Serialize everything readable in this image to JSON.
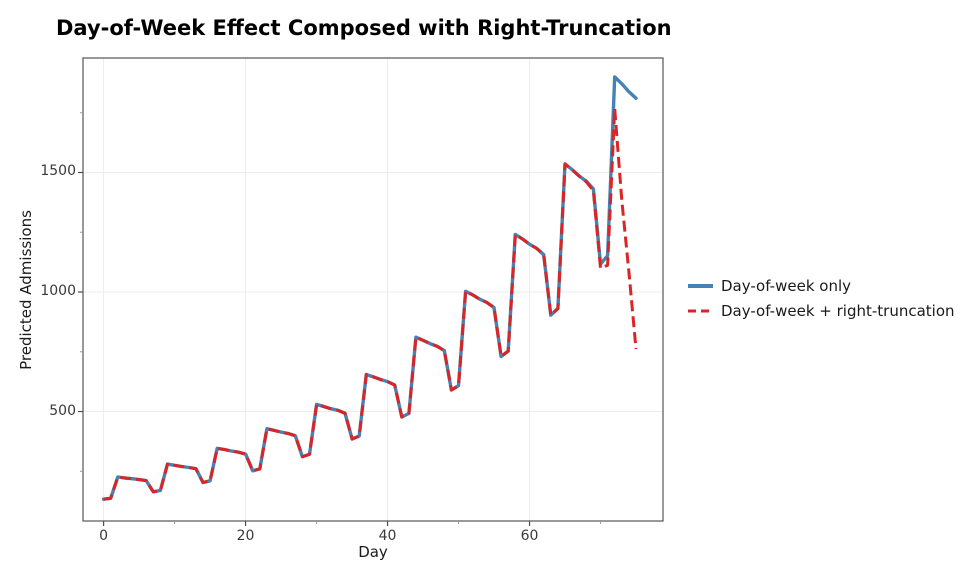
{
  "page": {
    "title": "Day-of-Week Effect Composed with Right-Truncation"
  },
  "chart_data": {
    "type": "line",
    "title": "Day-of-Week Effect Composed with Right-Truncation",
    "xlabel": "Day",
    "ylabel": "Predicted Admissions",
    "xlim": [
      -2.9,
      78.8
    ],
    "ylim": [
      42,
      1979
    ],
    "x_major_ticks": [
      0,
      20,
      40,
      60
    ],
    "x_major_tick_labels": [
      "0",
      "20",
      "40",
      "60"
    ],
    "x_minor_ticks": [
      10,
      30,
      50,
      70
    ],
    "y_major_ticks": [
      500,
      1000,
      1500
    ],
    "y_major_tick_labels": [
      "500",
      "1000",
      "1500"
    ],
    "y_minor_ticks": [
      250,
      750,
      1250,
      1750
    ],
    "grid": "major-both-very-light",
    "legend_position": "right-outside",
    "colors": {
      "blue_series": "#4682b4",
      "red_series": "#d92525",
      "gridline": "#ececec",
      "spine": "#555555",
      "tick": "#4d4d4d",
      "minor_tick": "#999999"
    },
    "days": [
      0,
      1,
      2,
      3,
      4,
      5,
      6,
      7,
      8,
      9,
      10,
      11,
      12,
      13,
      14,
      15,
      16,
      17,
      18,
      19,
      20,
      21,
      22,
      23,
      24,
      25,
      26,
      27,
      28,
      29,
      30,
      31,
      32,
      33,
      34,
      35,
      36,
      37,
      38,
      39,
      40,
      41,
      42,
      43,
      44,
      45,
      46,
      47,
      48,
      49,
      50,
      51,
      52,
      53,
      54,
      55,
      56,
      57,
      58,
      59,
      60,
      61,
      62,
      63,
      64,
      65,
      66,
      67,
      68,
      69,
      70,
      71,
      72,
      73,
      74,
      75
    ],
    "series": [
      {
        "name": "Day-of-week only",
        "style": "solid",
        "color": "#4682b4",
        "values": [
          133,
          137,
          226,
          222,
          219,
          215,
          211,
          164,
          170,
          280,
          275,
          270,
          266,
          261,
          203,
          210,
          346,
          341,
          335,
          330,
          322,
          252,
          260,
          428,
          421,
          414,
          408,
          399,
          311,
          321,
          530,
          521,
          512,
          505,
          493,
          385,
          397,
          655,
          645,
          634,
          625,
          611,
          477,
          492,
          811,
          798,
          784,
          773,
          755,
          590,
          608,
          1003,
          988,
          970,
          956,
          935,
          730,
          753,
          1241,
          1222,
          1200,
          1183,
          1156,
          903,
          931,
          1536,
          1512,
          1485,
          1464,
          1431,
          1117,
          1152,
          1900,
          1871,
          1838,
          1811
        ]
      },
      {
        "name": "Day-of-week + right-truncation",
        "style": "dashed",
        "color": "#d92525",
        "values": [
          133,
          137,
          226,
          222,
          219,
          215,
          211,
          164,
          170,
          280,
          275,
          270,
          266,
          261,
          203,
          210,
          346,
          341,
          335,
          330,
          322,
          252,
          260,
          428,
          421,
          414,
          408,
          399,
          311,
          321,
          530,
          521,
          512,
          505,
          493,
          385,
          397,
          655,
          645,
          634,
          625,
          611,
          477,
          492,
          811,
          798,
          784,
          773,
          755,
          590,
          608,
          1003,
          988,
          970,
          956,
          935,
          730,
          753,
          1241,
          1222,
          1200,
          1183,
          1156,
          903,
          931,
          1536,
          1512,
          1485,
          1461,
          1424,
          1100,
          1112,
          1767,
          1384,
          1084,
          761
        ]
      }
    ]
  }
}
